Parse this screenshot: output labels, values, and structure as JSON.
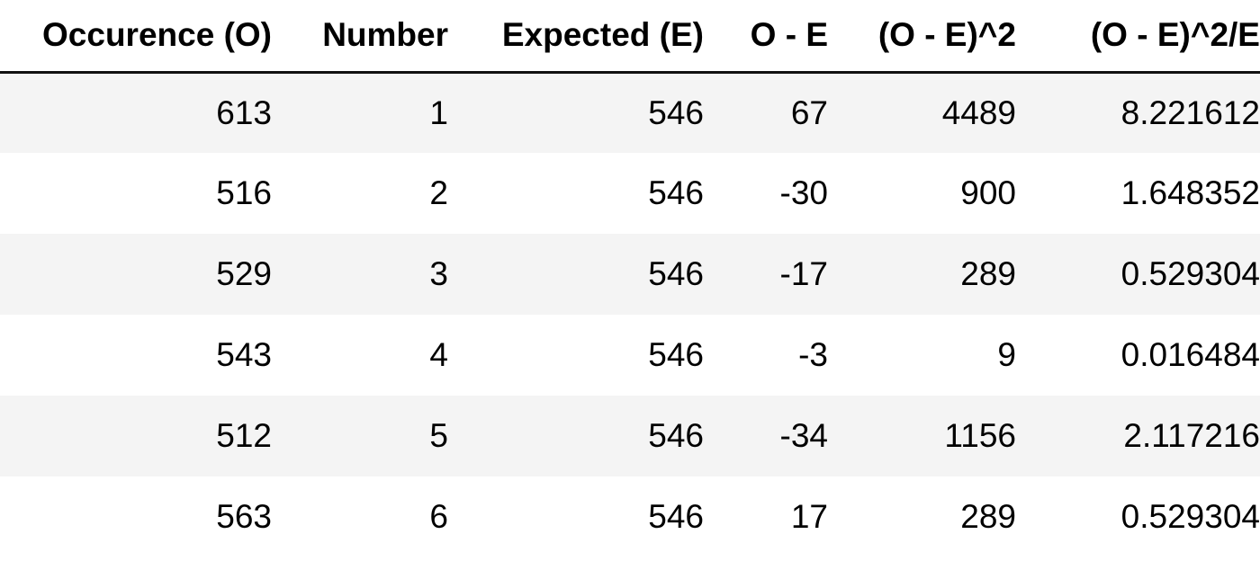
{
  "table": {
    "columns": [
      "Occurence (O)",
      "Number",
      "Expected (E)",
      "O - E",
      "(O - E)^2",
      "(O - E)^2/E"
    ],
    "rows": [
      [
        "613",
        "1",
        "546",
        "67",
        "4489",
        "8.221612"
      ],
      [
        "516",
        "2",
        "546",
        "-30",
        "900",
        "1.648352"
      ],
      [
        "529",
        "3",
        "546",
        "-17",
        "289",
        "0.529304"
      ],
      [
        "543",
        "4",
        "546",
        "-3",
        "9",
        "0.016484"
      ],
      [
        "512",
        "5",
        "546",
        "-34",
        "1156",
        "2.117216"
      ],
      [
        "563",
        "6",
        "546",
        "17",
        "289",
        "0.529304"
      ]
    ]
  }
}
